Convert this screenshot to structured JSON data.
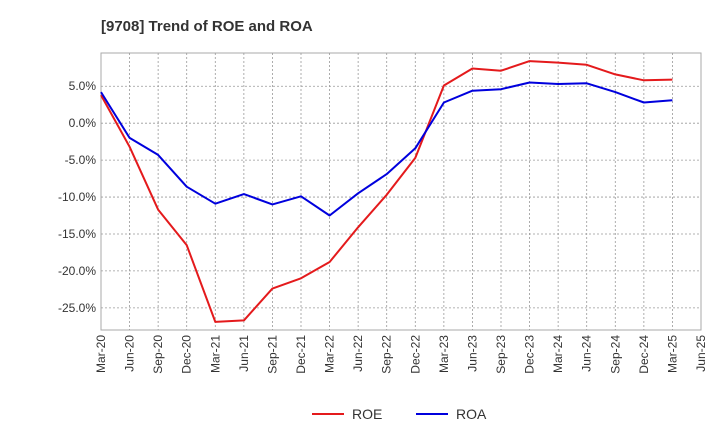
{
  "chart_data": {
    "type": "line",
    "title": "[9708]  Trend of ROE and ROA",
    "xlabel": "",
    "ylabel": "",
    "categories": [
      "Mar-20",
      "Jun-20",
      "Sep-20",
      "Dec-20",
      "Mar-21",
      "Jun-21",
      "Sep-21",
      "Dec-21",
      "Mar-22",
      "Jun-22",
      "Sep-22",
      "Dec-22",
      "Mar-23",
      "Jun-23",
      "Sep-23",
      "Dec-23",
      "Mar-24",
      "Jun-24",
      "Sep-24",
      "Dec-24",
      "Mar-25",
      "Jun-25"
    ],
    "ylim": [
      -28,
      9.5
    ],
    "yticks": [
      5,
      0,
      -5,
      -10,
      -15,
      -20,
      -25
    ],
    "ytick_labels": [
      "5.0%",
      "0.0%",
      "-5.0%",
      "-10.0%",
      "-15.0%",
      "-20.0%",
      "-25.0%"
    ],
    "grid": true,
    "legend_position": "bottom",
    "series": [
      {
        "name": "ROE",
        "color": "#e41a1c",
        "values": [
          3.8,
          -3.2,
          -11.7,
          -16.5,
          -26.9,
          -26.7,
          -22.4,
          -21.0,
          -18.8,
          -14.1,
          -9.7,
          -4.7,
          5.1,
          7.4,
          7.1,
          8.4,
          8.2,
          7.9,
          6.6,
          5.8,
          5.9,
          null
        ]
      },
      {
        "name": "ROA",
        "color": "#0000dd",
        "values": [
          4.2,
          -2.0,
          -4.3,
          -8.6,
          -10.9,
          -9.6,
          -11.0,
          -9.9,
          -12.5,
          -9.5,
          -6.9,
          -3.4,
          2.8,
          4.4,
          4.6,
          5.5,
          5.3,
          5.4,
          4.2,
          2.8,
          3.1,
          null
        ]
      }
    ]
  }
}
